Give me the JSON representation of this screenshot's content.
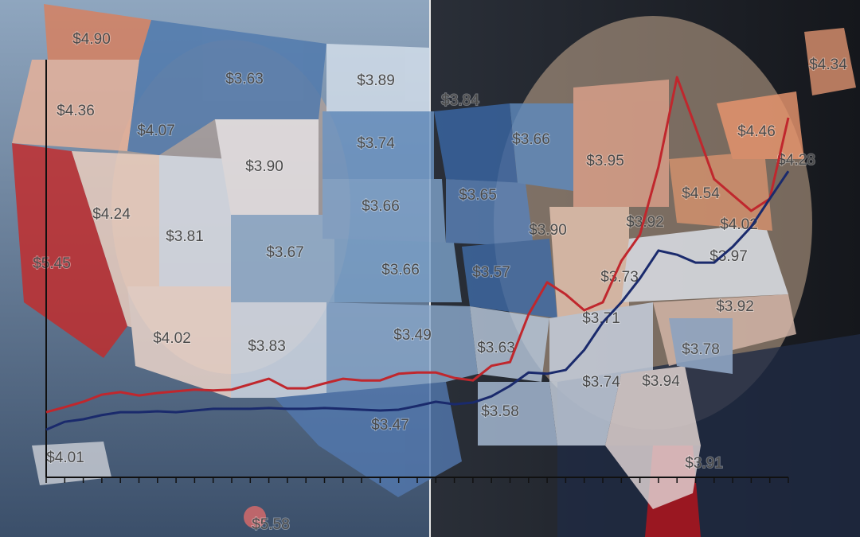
{
  "map_labels": [
    "$4.90",
    "$3.63",
    "$3.89",
    "$3.84",
    "$4.34",
    "$4.36",
    "$4.07",
    "$3.74",
    "$3.66",
    "$3.95",
    "$4.46",
    "$3.90",
    "$4.28",
    "$3.65",
    "$4.54",
    "$4.24",
    "$3.66",
    "$3.92",
    "$4.02",
    "$3.81",
    "$3.90",
    "$3.67",
    "$3.97",
    "$5.45",
    "$3.66",
    "$3.57",
    "$3.73",
    "$3.92",
    "$3.71",
    "$4.02",
    "$3.49",
    "$3.83",
    "$3.63",
    "$3.78",
    "$3.74",
    "$3.94",
    "$3.58",
    "$3.47",
    "$4.01",
    "$3.91",
    "$5.58"
  ],
  "chart_data": {
    "type": "line",
    "categories": [
      null,
      null,
      null,
      null,
      null,
      null,
      null,
      null,
      null,
      null,
      null,
      null,
      null,
      null,
      null,
      null,
      null,
      null,
      null,
      null,
      null,
      null,
      null,
      null,
      null,
      null,
      null,
      null,
      null,
      null,
      null,
      null,
      null,
      null,
      null,
      null,
      null,
      null,
      null,
      null,
      null
    ],
    "ylim": [
      0,
      100
    ],
    "series": [
      {
        "color": "#c0272d",
        "values": [
          15.6,
          16.8,
          18.1,
          19.8,
          20.4,
          19.6,
          20.2,
          20.6,
          21.0,
          20.8,
          21.0,
          22.3,
          23.6,
          21.3,
          21.3,
          22.5,
          23.6,
          23.2,
          23.2,
          24.8,
          25.1,
          25.1,
          23.8,
          23.2,
          26.7,
          27.6,
          39.0,
          46.7,
          43.8,
          40.0,
          41.9,
          51.8,
          58.1,
          74.3,
          95.8,
          83.8,
          71.4,
          67.6,
          63.8,
          66.7,
          86.1
        ]
      },
      {
        "color": "#1a2a6c",
        "values": [
          11.4,
          13.3,
          13.9,
          14.9,
          15.6,
          15.6,
          15.8,
          15.6,
          16.0,
          16.4,
          16.4,
          16.4,
          16.6,
          16.4,
          16.4,
          16.6,
          16.4,
          16.2,
          16.0,
          16.2,
          17.1,
          18.1,
          17.5,
          17.9,
          19.4,
          21.9,
          25.1,
          24.8,
          25.7,
          30.5,
          37.1,
          41.9,
          47.6,
          54.3,
          53.3,
          51.4,
          51.4,
          55.2,
          60.0,
          66.7,
          73.3
        ]
      }
    ]
  }
}
